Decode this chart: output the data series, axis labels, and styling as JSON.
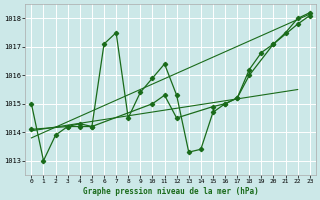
{
  "title": "Graphe pression niveau de la mer (hPa)",
  "bg_color": "#cce8e8",
  "grid_color": "#ffffff",
  "line_color": "#1a6b1a",
  "xlim": [
    -0.5,
    23.5
  ],
  "ylim": [
    1012.5,
    1018.5
  ],
  "yticks": [
    1013,
    1014,
    1015,
    1016,
    1017,
    1018
  ],
  "xticks": [
    0,
    1,
    2,
    3,
    4,
    5,
    6,
    7,
    8,
    9,
    10,
    11,
    12,
    13,
    14,
    15,
    16,
    17,
    18,
    19,
    20,
    21,
    22,
    23
  ],
  "series1": [
    1015.0,
    1013.0,
    1013.9,
    1014.2,
    1014.3,
    1014.2,
    1017.1,
    1017.5,
    1014.5,
    1015.4,
    1015.9,
    1016.4,
    1015.3,
    1013.3,
    1013.4,
    1014.7,
    1015.0,
    1015.2,
    1016.2,
    1016.8,
    1017.1,
    1017.5,
    1018.0,
    1018.2
  ],
  "series2_x": [
    0,
    3,
    4,
    5,
    10,
    11,
    12,
    15,
    16,
    17,
    18,
    20,
    22,
    23
  ],
  "series2_y": [
    1014.1,
    1014.2,
    1014.2,
    1014.2,
    1015.0,
    1015.3,
    1014.5,
    1014.9,
    1015.0,
    1015.2,
    1016.0,
    1017.1,
    1017.8,
    1018.1
  ],
  "trend1_x": [
    0,
    23
  ],
  "trend1_y": [
    1013.8,
    1018.15
  ],
  "trend2_x": [
    0,
    22
  ],
  "trend2_y": [
    1014.05,
    1015.5
  ]
}
